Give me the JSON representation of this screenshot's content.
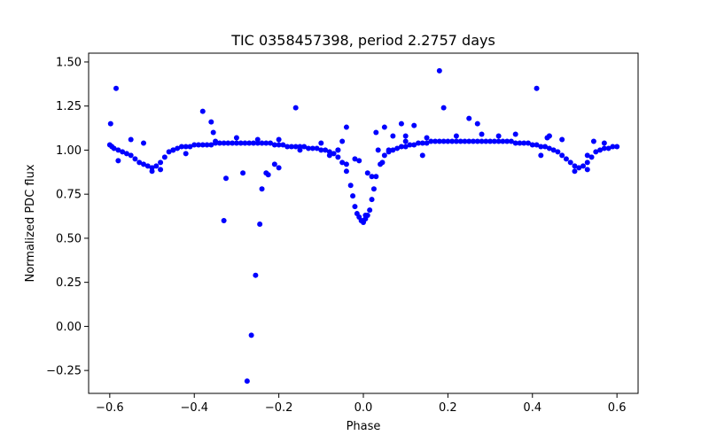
{
  "chart_data": {
    "type": "scatter",
    "title": "TIC 0358457398, period 2.2757 days",
    "xlabel": "Phase",
    "ylabel": "Normalized PDC flux",
    "xlim": [
      -0.65,
      0.65
    ],
    "ylim": [
      -0.38,
      1.55
    ],
    "xticks": [
      {
        "value": -0.6,
        "label": "−0.6"
      },
      {
        "value": -0.4,
        "label": "−0.4"
      },
      {
        "value": -0.2,
        "label": "−0.2"
      },
      {
        "value": 0.0,
        "label": "0.0"
      },
      {
        "value": 0.2,
        "label": "0.2"
      },
      {
        "value": 0.4,
        "label": "0.4"
      },
      {
        "value": 0.6,
        "label": "0.6"
      }
    ],
    "yticks": [
      {
        "value": -0.25,
        "label": "−0.25"
      },
      {
        "value": 0.0,
        "label": "0.00"
      },
      {
        "value": 0.25,
        "label": "0.25"
      },
      {
        "value": 0.5,
        "label": "0.50"
      },
      {
        "value": 0.75,
        "label": "0.75"
      },
      {
        "value": 1.0,
        "label": "1.00"
      },
      {
        "value": 1.25,
        "label": "1.25"
      },
      {
        "value": 1.5,
        "label": "1.50"
      }
    ],
    "grid": false,
    "color": "#0000ff",
    "series": [
      {
        "name": "flux",
        "x": [
          -0.6,
          -0.595,
          -0.59,
          -0.58,
          -0.57,
          -0.56,
          -0.55,
          -0.54,
          -0.53,
          -0.52,
          -0.51,
          -0.5,
          -0.49,
          -0.48,
          -0.47,
          -0.46,
          -0.45,
          -0.44,
          -0.43,
          -0.42,
          -0.41,
          -0.4,
          -0.39,
          -0.38,
          -0.37,
          -0.36,
          -0.35,
          -0.34,
          -0.33,
          -0.32,
          -0.31,
          -0.3,
          -0.29,
          -0.28,
          -0.27,
          -0.26,
          -0.25,
          -0.24,
          -0.23,
          -0.22,
          -0.21,
          -0.2,
          -0.19,
          -0.18,
          -0.17,
          -0.16,
          -0.15,
          -0.14,
          -0.13,
          -0.12,
          -0.11,
          -0.1,
          -0.09,
          -0.08,
          -0.07,
          -0.06,
          -0.05,
          -0.04,
          -0.03,
          -0.025,
          -0.02,
          -0.015,
          -0.01,
          -0.005,
          0.0,
          0.005,
          0.01,
          0.015,
          0.02,
          0.025,
          0.03,
          0.04,
          0.05,
          0.06,
          0.07,
          0.08,
          0.09,
          0.1,
          0.11,
          0.12,
          0.13,
          0.14,
          0.15,
          0.16,
          0.17,
          0.18,
          0.19,
          0.2,
          0.21,
          0.22,
          0.23,
          0.24,
          0.25,
          0.26,
          0.27,
          0.28,
          0.29,
          0.3,
          0.31,
          0.32,
          0.33,
          0.34,
          0.35,
          0.36,
          0.37,
          0.38,
          0.39,
          0.4,
          0.41,
          0.42,
          0.43,
          0.44,
          0.45,
          0.46,
          0.47,
          0.48,
          0.49,
          0.5,
          0.51,
          0.52,
          0.53,
          0.54,
          0.55,
          0.56,
          0.57,
          0.58,
          0.59,
          0.6,
          -0.598,
          -0.585,
          -0.58,
          -0.38,
          -0.36,
          -0.355,
          -0.33,
          -0.325,
          -0.285,
          -0.275,
          -0.265,
          -0.255,
          -0.245,
          -0.24,
          -0.23,
          -0.225,
          -0.21,
          -0.2,
          -0.16,
          -0.06,
          -0.05,
          -0.04,
          -0.02,
          -0.01,
          0.0,
          0.005,
          0.01,
          0.02,
          0.03,
          0.035,
          0.05,
          0.07,
          0.09,
          0.1,
          0.12,
          0.14,
          0.18,
          0.19,
          0.25,
          0.27,
          0.41,
          0.42,
          0.435,
          0.44,
          0.53,
          0.545,
          -0.55,
          -0.52,
          -0.5,
          -0.48,
          -0.45,
          -0.42,
          -0.35,
          -0.3,
          -0.25,
          -0.2,
          -0.15,
          -0.1,
          -0.08,
          -0.06,
          -0.04,
          0.045,
          0.06,
          0.1,
          0.15,
          0.22,
          0.28,
          0.32,
          0.36,
          0.44,
          0.47,
          0.5,
          0.53,
          0.57
        ],
        "y": [
          1.03,
          1.02,
          1.01,
          1.0,
          0.99,
          0.98,
          0.97,
          0.95,
          0.93,
          0.92,
          0.91,
          0.9,
          0.91,
          0.93,
          0.96,
          0.99,
          1.0,
          1.01,
          1.02,
          1.02,
          1.02,
          1.03,
          1.03,
          1.03,
          1.03,
          1.03,
          1.04,
          1.04,
          1.04,
          1.04,
          1.04,
          1.04,
          1.04,
          1.04,
          1.04,
          1.04,
          1.04,
          1.04,
          1.04,
          1.04,
          1.03,
          1.03,
          1.03,
          1.02,
          1.02,
          1.02,
          1.02,
          1.02,
          1.01,
          1.01,
          1.01,
          1.0,
          1.0,
          0.99,
          0.98,
          0.96,
          0.93,
          0.88,
          0.8,
          0.74,
          0.68,
          0.64,
          0.62,
          0.6,
          0.6,
          0.61,
          0.63,
          0.66,
          0.72,
          0.78,
          0.85,
          0.92,
          0.97,
          0.99,
          1.0,
          1.01,
          1.02,
          1.02,
          1.03,
          1.03,
          1.04,
          1.04,
          1.04,
          1.05,
          1.05,
          1.05,
          1.05,
          1.05,
          1.05,
          1.05,
          1.05,
          1.05,
          1.05,
          1.05,
          1.05,
          1.05,
          1.05,
          1.05,
          1.05,
          1.05,
          1.05,
          1.05,
          1.05,
          1.04,
          1.04,
          1.04,
          1.04,
          1.03,
          1.03,
          1.02,
          1.02,
          1.01,
          1.0,
          0.99,
          0.97,
          0.95,
          0.93,
          0.91,
          0.9,
          0.91,
          0.93,
          0.96,
          0.99,
          1.0,
          1.01,
          1.01,
          1.02,
          1.02,
          1.15,
          1.35,
          0.94,
          1.22,
          1.16,
          1.1,
          0.6,
          0.84,
          0.87,
          -0.31,
          -0.05,
          0.29,
          0.58,
          0.78,
          0.87,
          0.86,
          0.92,
          0.9,
          1.24,
          1.0,
          1.05,
          1.13,
          0.95,
          0.94,
          0.59,
          0.63,
          0.87,
          0.85,
          1.1,
          1.0,
          1.13,
          1.08,
          1.15,
          1.05,
          1.14,
          0.97,
          1.45,
          1.24,
          1.18,
          1.15,
          1.35,
          0.97,
          1.07,
          1.08,
          0.97,
          1.05,
          1.06,
          1.04,
          0.88,
          0.89,
          1.0,
          0.98,
          1.05,
          1.07,
          1.06,
          1.06,
          1.0,
          1.04,
          0.97,
          1.0,
          0.92,
          0.93,
          1.0,
          1.08,
          1.07,
          1.08,
          1.09,
          1.08,
          1.09,
          1.08,
          1.06,
          0.88,
          0.89,
          1.04
        ]
      }
    ]
  }
}
